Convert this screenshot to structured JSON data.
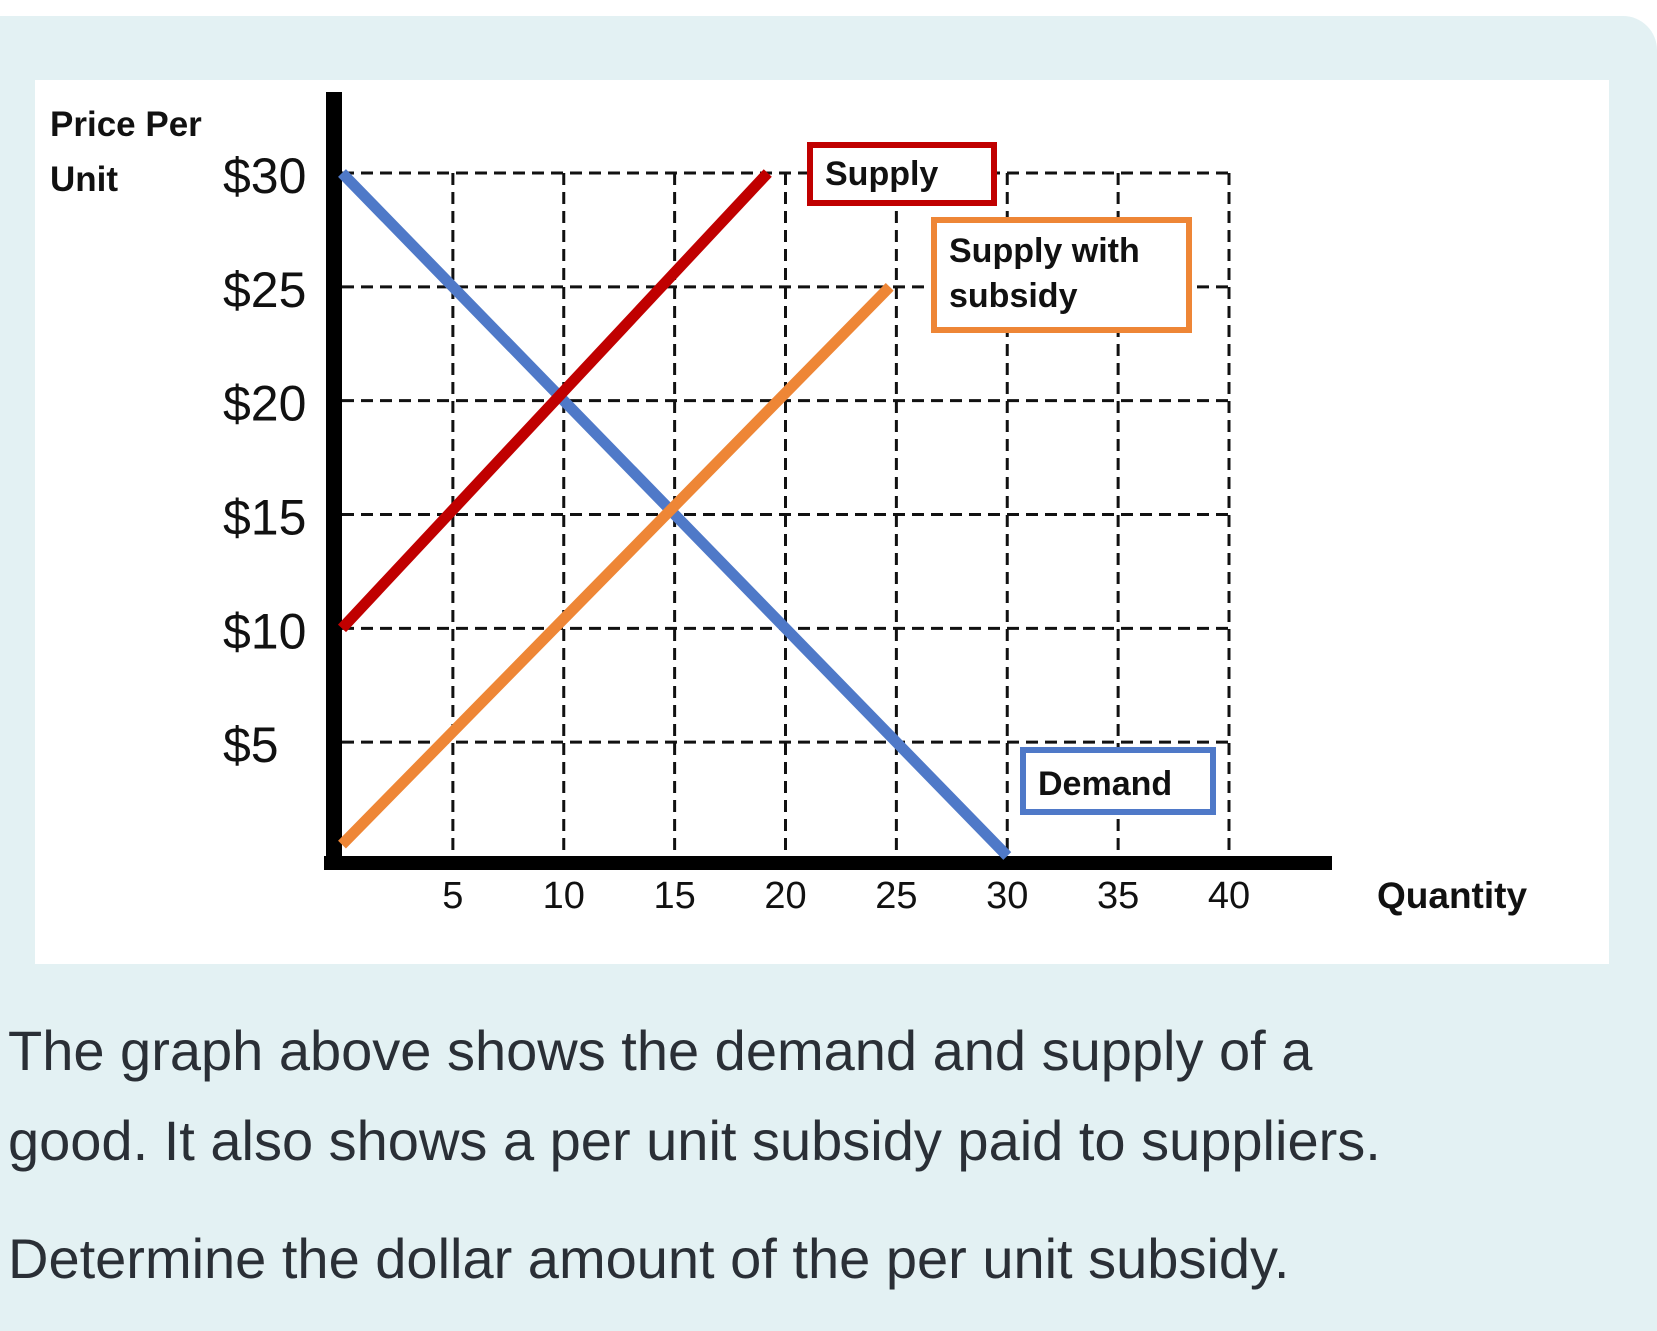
{
  "chart_data": {
    "type": "line",
    "title": "",
    "ylabel": [
      "Price Per",
      "Unit"
    ],
    "xlabel": "Quantity",
    "xlim": [
      0,
      40
    ],
    "ylim": [
      0,
      30
    ],
    "grid": true,
    "x_ticks": [
      5,
      10,
      15,
      20,
      25,
      30,
      35,
      40
    ],
    "x_tick_labels": [
      "5",
      "10",
      "15",
      "20",
      "25",
      "30",
      "35",
      "40"
    ],
    "y_ticks": [
      5,
      10,
      15,
      20,
      25,
      30
    ],
    "y_tick_labels": [
      "$5",
      "$10",
      "$15",
      "$20",
      "$25",
      "$30"
    ],
    "series": [
      {
        "name": "Demand",
        "color": "#4f79c8",
        "points": [
          [
            0,
            30
          ],
          [
            30,
            0
          ]
        ],
        "label_box": [
          "Demand"
        ]
      },
      {
        "name": "Supply",
        "color": "#c00000",
        "points": [
          [
            0,
            10
          ],
          [
            19.2,
            30
          ]
        ],
        "label_box": [
          "Supply"
        ]
      },
      {
        "name": "Supply with subsidy",
        "color": "#ee8636",
        "points": [
          [
            0,
            0.5
          ],
          [
            24.7,
            25
          ]
        ],
        "label_box": [
          "Supply with",
          "subsidy"
        ]
      }
    ]
  },
  "question": {
    "lines": [
      "The graph above shows the demand and supply of a",
      "good. It also shows a per unit subsidy paid to suppliers."
    ],
    "prompt": "Determine the dollar amount of the per unit subsidy."
  }
}
